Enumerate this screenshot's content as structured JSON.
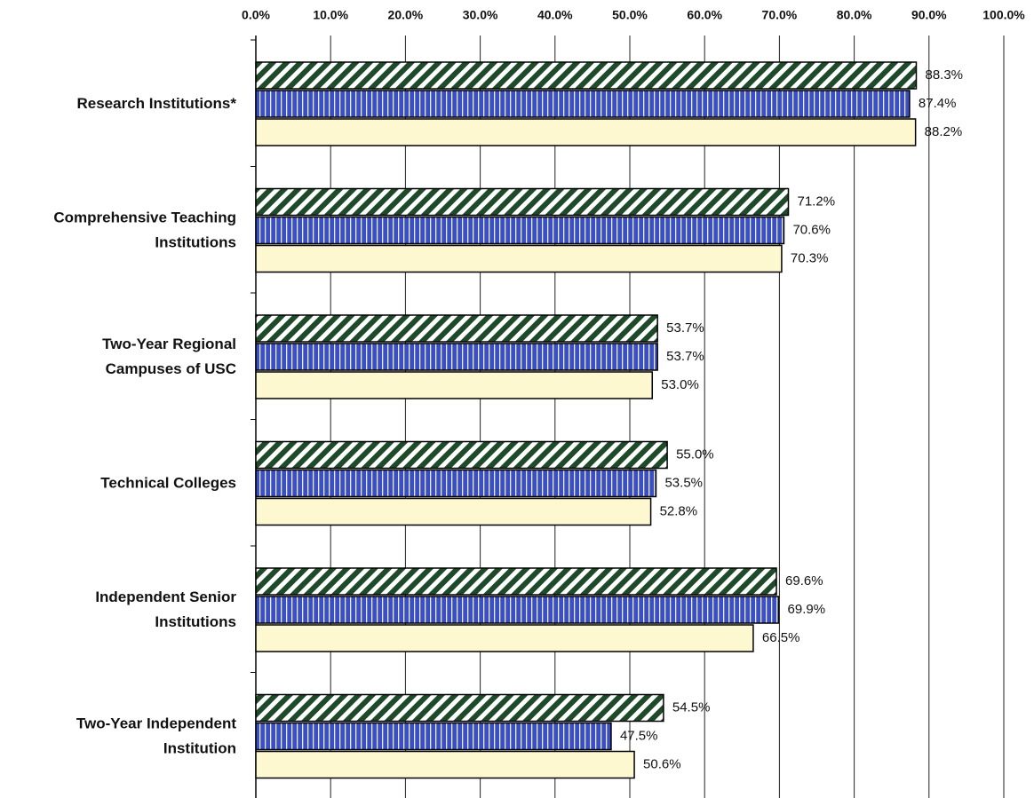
{
  "chart_data": {
    "type": "hbar",
    "categories": [
      [
        "Research Institutions*"
      ],
      [
        "Comprehensive Teaching",
        "Institutions"
      ],
      [
        "Two-Year Regional",
        "Campuses of USC"
      ],
      [
        "Technical Colleges"
      ],
      [
        "Independent Senior",
        "Institutions"
      ],
      [
        "Two-Year Independent",
        "Institution"
      ]
    ],
    "series": [
      {
        "color": "#1f4a2a",
        "pattern": "diagonal",
        "values": [
          88.3,
          71.2,
          53.7,
          55.0,
          69.6,
          54.5
        ],
        "value_labels": [
          "88.3%",
          "71.2%",
          "53.7%",
          "55.0%",
          "69.6%",
          "54.5%"
        ]
      },
      {
        "color": "#3b4fc0",
        "pattern": "vertical",
        "values": [
          87.4,
          70.6,
          53.7,
          53.5,
          69.9,
          47.5
        ],
        "value_labels": [
          "87.4%",
          "70.6%",
          "53.7%",
          "53.5%",
          "69.9%",
          "47.5%"
        ]
      },
      {
        "color": "#fdf8cf",
        "pattern": "solid",
        "values": [
          88.2,
          70.3,
          53.0,
          52.8,
          66.5,
          50.6
        ],
        "value_labels": [
          "88.2%",
          "70.3%",
          "53.0%",
          "52.8%",
          "66.5%",
          "50.6%"
        ]
      }
    ],
    "xlim": [
      0,
      100
    ],
    "xticks": [
      {
        "value": 0,
        "label": "0.0%"
      },
      {
        "value": 10,
        "label": "10.0%"
      },
      {
        "value": 20,
        "label": "20.0%"
      },
      {
        "value": 30,
        "label": "30.0%"
      },
      {
        "value": 40,
        "label": "40.0%"
      },
      {
        "value": 50,
        "label": "50.0%"
      },
      {
        "value": 60,
        "label": "60.0%"
      },
      {
        "value": 70,
        "label": "70.0%"
      },
      {
        "value": 80,
        "label": "80.0%"
      },
      {
        "value": 90,
        "label": "90.0%"
      },
      {
        "value": 100,
        "label": "100.0%"
      }
    ],
    "grid": true
  }
}
